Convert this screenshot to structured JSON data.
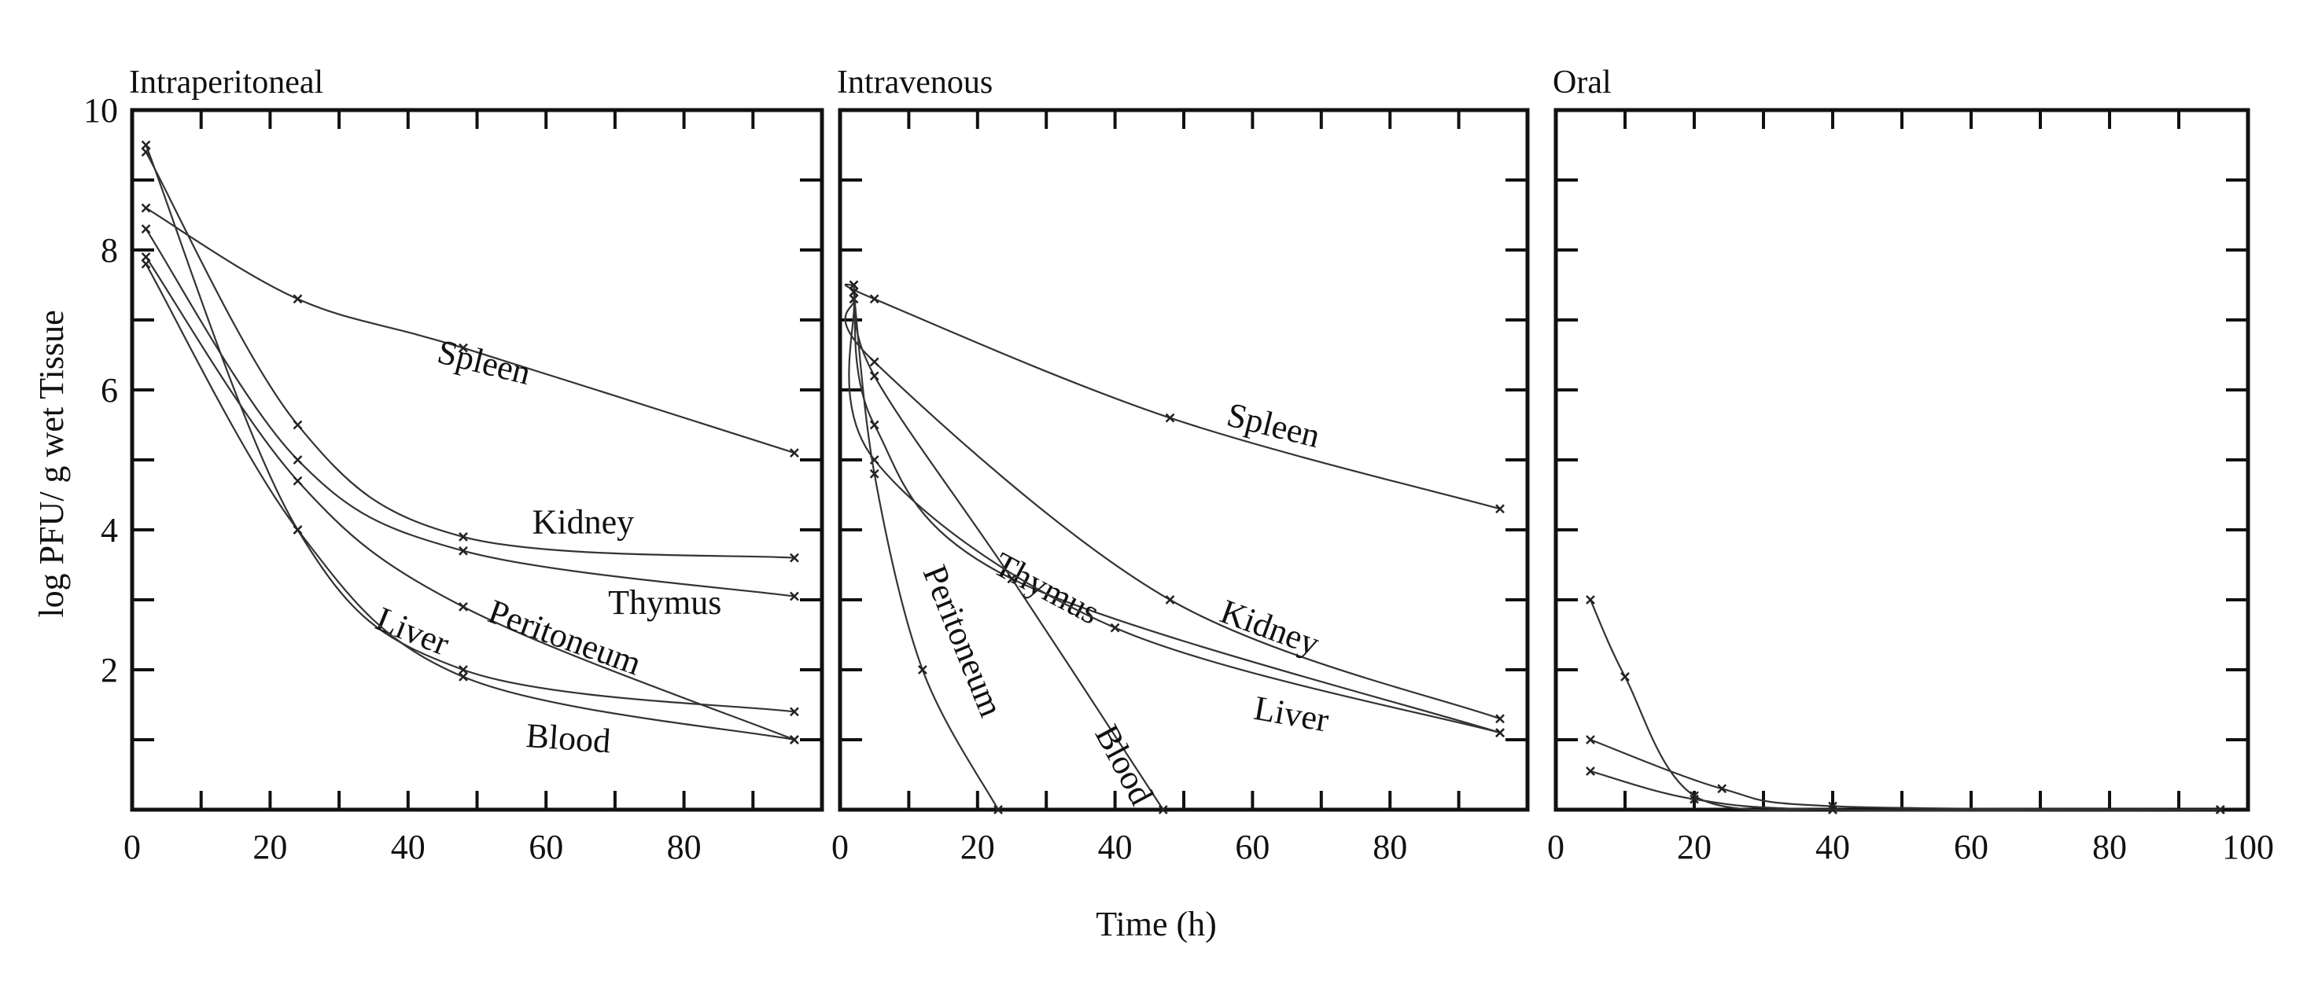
{
  "chart_data": [
    {
      "type": "line",
      "title": "Intraperitoneal",
      "xlim": [
        0,
        100
      ],
      "ylim": [
        0,
        10
      ],
      "xticks": [
        0,
        20,
        40,
        60,
        80
      ],
      "yticks": [
        2,
        4,
        6,
        8,
        10
      ],
      "series": [
        {
          "name": "Spleen",
          "x": [
            2,
            24,
            48,
            96
          ],
          "y": [
            8.6,
            7.3,
            6.6,
            5.1
          ],
          "label_at": [
            44,
            6.4,
            14
          ]
        },
        {
          "name": "Kidney",
          "x": [
            2,
            24,
            48,
            96
          ],
          "y": [
            9.4,
            5.5,
            3.9,
            3.6
          ],
          "label_at": [
            58,
            3.95,
            0
          ]
        },
        {
          "name": "Thymus",
          "x": [
            2,
            24,
            48,
            96
          ],
          "y": [
            8.3,
            5.0,
            3.7,
            3.05
          ],
          "label_at": [
            69,
            2.8,
            0
          ]
        },
        {
          "name": "Peritoneum",
          "x": [
            2,
            24,
            48,
            96
          ],
          "y": [
            7.9,
            4.7,
            2.9,
            1.0
          ],
          "label_at": [
            49,
            2.7,
            20
          ]
        },
        {
          "name": "Liver",
          "x": [
            2,
            24,
            48,
            96
          ],
          "y": [
            9.5,
            4.0,
            2.0,
            1.4
          ],
          "label_at": [
            35,
            2.6,
            22
          ]
        },
        {
          "name": "Blood",
          "x": [
            2,
            24,
            48,
            96
          ],
          "y": [
            7.8,
            4.0,
            1.9,
            1.0
          ],
          "label_at": [
            57,
            0.9,
            4
          ]
        }
      ]
    },
    {
      "type": "line",
      "title": "Intravenous",
      "xlim": [
        0,
        100
      ],
      "ylim": [
        0,
        10
      ],
      "xticks": [
        0,
        20,
        40,
        60,
        80
      ],
      "yticks": [],
      "series": [
        {
          "name": "Spleen",
          "x": [
            2,
            5,
            48,
            96
          ],
          "y": [
            7.5,
            7.3,
            5.6,
            4.3
          ],
          "label_at": [
            56,
            5.5,
            14
          ]
        },
        {
          "name": "Kidney",
          "x": [
            2,
            5,
            48,
            96
          ],
          "y": [
            7.3,
            6.4,
            3.0,
            1.3
          ],
          "label_at": [
            55,
            2.7,
            20
          ]
        },
        {
          "name": "Thymus",
          "x": [
            2,
            5,
            25,
            96
          ],
          "y": [
            7.5,
            5.5,
            3.3,
            1.1
          ],
          "label_at": [
            22,
            3.4,
            28
          ]
        },
        {
          "name": "Liver",
          "x": [
            2,
            5,
            40,
            96
          ],
          "y": [
            7.3,
            5.0,
            2.6,
            1.1
          ],
          "label_at": [
            60,
            1.3,
            10
          ]
        },
        {
          "name": "Blood",
          "x": [
            2,
            5,
            25,
            47
          ],
          "y": [
            7.4,
            6.2,
            3.3,
            0.0
          ],
          "label_at": [
            37,
            1.1,
            62
          ]
        },
        {
          "name": "Peritoneum",
          "x": [
            2,
            5,
            12,
            23
          ],
          "y": [
            7.4,
            4.8,
            2.0,
            0.0
          ],
          "label_at": [
            12,
            0.6,
            68
          ]
        }
      ]
    },
    {
      "type": "line",
      "title": "Oral",
      "xlim": [
        0,
        100
      ],
      "ylim": [
        0,
        10
      ],
      "xticks": [
        0,
        20,
        40,
        60,
        80,
        100
      ],
      "yticks": [],
      "series": [
        {
          "name": "",
          "x": [
            5,
            10,
            20,
            40
          ],
          "y": [
            3.0,
            1.9,
            0.2,
            0.0
          ]
        },
        {
          "name": "",
          "x": [
            5,
            24,
            40,
            96
          ],
          "y": [
            1.0,
            0.3,
            0.05,
            0.0
          ]
        },
        {
          "name": "",
          "x": [
            5,
            20,
            40,
            96
          ],
          "y": [
            0.55,
            0.15,
            0.0,
            0.0
          ]
        }
      ]
    }
  ],
  "ylabel": "log PFU/ g wet Tissue",
  "xlabel": "Time (h)"
}
